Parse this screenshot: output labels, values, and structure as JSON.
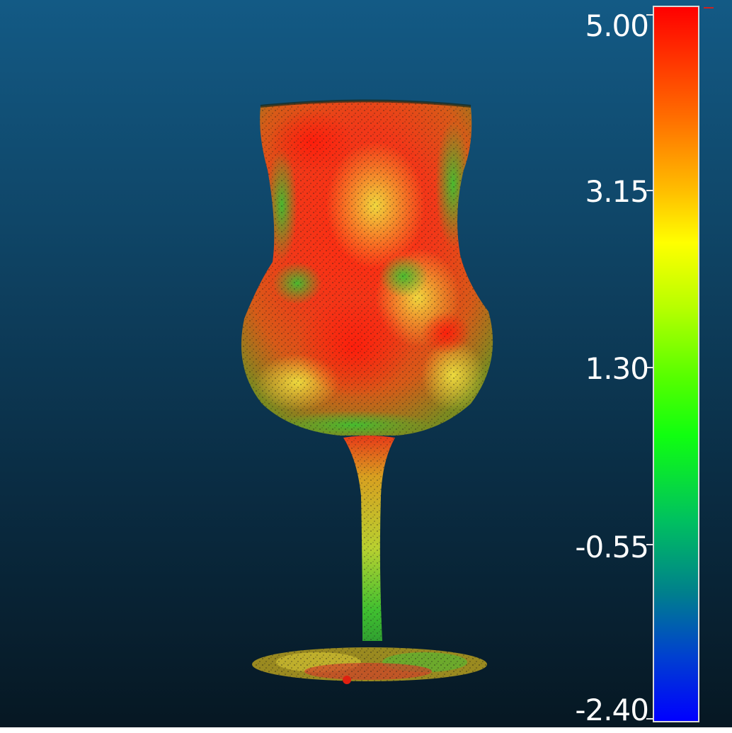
{
  "viewer": {
    "object": "goblet point cloud distance map",
    "background_colors": {
      "top": "#135a85",
      "bottom": "#061722"
    }
  },
  "color_scale": {
    "labels": [
      "5.00",
      "3.15",
      "1.30",
      "-0.55",
      "-2.40"
    ],
    "colors": {
      "max": "#ff0000",
      "upper_mid": "#ffff00",
      "mid": "#10ff10",
      "lower_mid": "#00808c",
      "min": "#0000ff"
    }
  }
}
